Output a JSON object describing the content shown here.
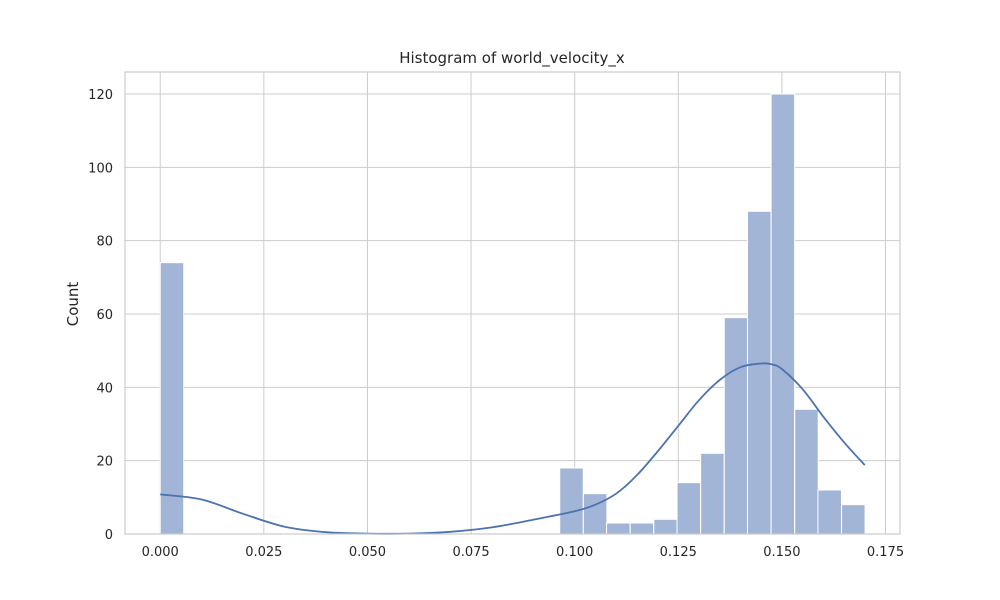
{
  "chart_data": {
    "type": "bar",
    "title": "Histogram of world_velocity_x",
    "xlabel": "",
    "ylabel": "Count",
    "xlim": [
      -0.0085,
      0.1785
    ],
    "ylim": [
      0,
      126
    ],
    "x_ticks": [
      0.0,
      0.025,
      0.05,
      0.075,
      0.1,
      0.125,
      0.15,
      0.175
    ],
    "x_tick_labels": [
      "0.000",
      "0.025",
      "0.050",
      "0.075",
      "0.100",
      "0.125",
      "0.150",
      "0.175"
    ],
    "y_ticks": [
      0,
      20,
      40,
      60,
      80,
      100,
      120
    ],
    "y_tick_labels": [
      "0",
      "20",
      "40",
      "60",
      "80",
      "100",
      "120"
    ],
    "grid": true,
    "bin_width": 0.00567,
    "bins": [
      {
        "x0": 0.0,
        "count": 74
      },
      {
        "x0": 0.0964,
        "count": 18
      },
      {
        "x0": 0.1021,
        "count": 11
      },
      {
        "x0": 0.1077,
        "count": 3
      },
      {
        "x0": 0.1134,
        "count": 3
      },
      {
        "x0": 0.1191,
        "count": 4
      },
      {
        "x0": 0.1247,
        "count": 14
      },
      {
        "x0": 0.1304,
        "count": 22
      },
      {
        "x0": 0.1361,
        "count": 59
      },
      {
        "x0": 0.1417,
        "count": 88
      },
      {
        "x0": 0.1474,
        "count": 120
      },
      {
        "x0": 0.1531,
        "count": 34
      },
      {
        "x0": 0.1587,
        "count": 12
      },
      {
        "x0": 0.1644,
        "count": 8
      }
    ],
    "kde": {
      "x": [
        0.0,
        0.01,
        0.02,
        0.03,
        0.04,
        0.05,
        0.06,
        0.07,
        0.08,
        0.09,
        0.1,
        0.105,
        0.11,
        0.115,
        0.12,
        0.125,
        0.13,
        0.135,
        0.14,
        0.145,
        0.1475,
        0.15,
        0.155,
        0.16,
        0.165,
        0.17
      ],
      "y": [
        10.8,
        9.4,
        5.5,
        2.0,
        0.5,
        0.1,
        0.1,
        0.6,
        1.8,
        3.9,
        6.2,
        8.0,
        11.0,
        16.0,
        22.5,
        29.5,
        36.5,
        42.0,
        45.5,
        46.5,
        46.3,
        45.0,
        39.5,
        32.0,
        25.0,
        18.8
      ]
    },
    "colors": {
      "bar_fill": "#a2b5d6",
      "bar_edge": "#ffffff",
      "kde_line": "#4c72b0",
      "grid": "#cccccc",
      "frame": "#cccccc",
      "text": "#262626"
    }
  }
}
